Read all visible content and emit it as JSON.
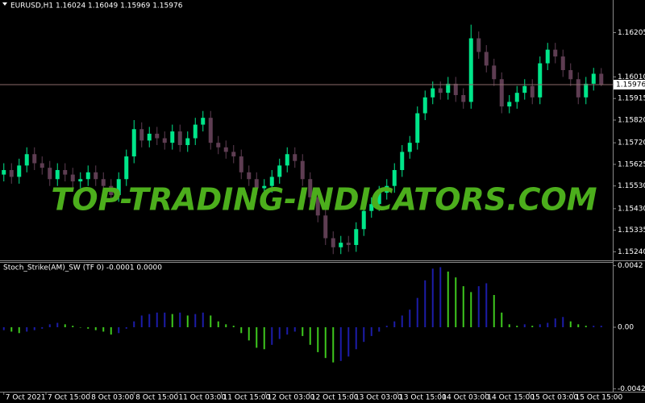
{
  "watermark": "TOP-TRADING-INDICATORS.COM",
  "chart_data": [
    {
      "type": "candlestick",
      "title": "EURUSD,H1  1.16024 1.16049 1.15969 1.15976",
      "open": [
        1.1558,
        1.156,
        1.1557,
        1.1562,
        1.1567,
        1.1563,
        1.1561,
        1.1556,
        1.156,
        1.1558,
        1.1555,
        1.1556,
        1.1559,
        1.1556,
        1.1553,
        1.1549,
        1.1556,
        1.1566,
        1.1578,
        1.1573,
        1.1576,
        1.1574,
        1.1572,
        1.1577,
        1.1571,
        1.1574,
        1.158,
        1.1583,
        1.1572,
        1.157,
        1.1568,
        1.1566,
        1.1559,
        1.1556,
        1.1552,
        1.1553,
        1.1557,
        1.1562,
        1.1567,
        1.1564,
        1.1556,
        1.1548,
        1.154,
        1.153,
        1.1526,
        1.1528,
        1.1527,
        1.1534,
        1.1542,
        1.1545,
        1.155,
        1.1553,
        1.156,
        1.1568,
        1.1572,
        1.1585,
        1.1592,
        1.1596,
        1.1594,
        1.1598,
        1.1593,
        1.159,
        1.1618,
        1.1612,
        1.1606,
        1.16,
        1.1588,
        1.159,
        1.1594,
        1.1597,
        1.1592,
        1.1607,
        1.1613,
        1.161,
        1.1604,
        1.16,
        1.1592,
        1.1598,
        1.16024
      ],
      "high": [
        1.1563,
        1.1563,
        1.1565,
        1.157,
        1.157,
        1.1566,
        1.1564,
        1.1563,
        1.1563,
        1.1561,
        1.1559,
        1.1562,
        1.1562,
        1.1559,
        1.1556,
        1.1559,
        1.1569,
        1.1582,
        1.1581,
        1.1579,
        1.1579,
        1.1577,
        1.158,
        1.158,
        1.1577,
        1.1583,
        1.1586,
        1.1586,
        1.1575,
        1.1573,
        1.1571,
        1.1569,
        1.1562,
        1.1559,
        1.1556,
        1.156,
        1.1565,
        1.157,
        1.157,
        1.1567,
        1.1559,
        1.1551,
        1.1543,
        1.1533,
        1.1531,
        1.1531,
        1.1537,
        1.1545,
        1.1548,
        1.1553,
        1.1556,
        1.1563,
        1.1571,
        1.1575,
        1.1588,
        1.1595,
        1.1599,
        1.1599,
        1.1601,
        1.1601,
        1.1596,
        1.1624,
        1.1621,
        1.1615,
        1.1609,
        1.1603,
        1.1593,
        1.1597,
        1.16,
        1.16,
        1.161,
        1.1616,
        1.1616,
        1.1613,
        1.1607,
        1.1603,
        1.1601,
        1.1605,
        1.16049
      ],
      "low": [
        1.1555,
        1.1554,
        1.1554,
        1.1559,
        1.156,
        1.1558,
        1.1553,
        1.1553,
        1.1555,
        1.1552,
        1.1552,
        1.1553,
        1.1553,
        1.155,
        1.1546,
        1.1546,
        1.1553,
        1.1563,
        1.157,
        1.157,
        1.1571,
        1.1569,
        1.1569,
        1.1568,
        1.1568,
        1.1571,
        1.1577,
        1.1569,
        1.1567,
        1.1565,
        1.1563,
        1.1556,
        1.1553,
        1.1549,
        1.1549,
        1.155,
        1.1554,
        1.1559,
        1.1561,
        1.1553,
        1.1545,
        1.1537,
        1.1527,
        1.1523,
        1.1523,
        1.1524,
        1.1524,
        1.1531,
        1.1539,
        1.1542,
        1.1547,
        1.155,
        1.1557,
        1.1565,
        1.1569,
        1.1582,
        1.1589,
        1.1591,
        1.1591,
        1.159,
        1.1587,
        1.1587,
        1.1609,
        1.1603,
        1.1597,
        1.1585,
        1.1585,
        1.1587,
        1.1591,
        1.1589,
        1.1589,
        1.1604,
        1.1607,
        1.1601,
        1.1597,
        1.1589,
        1.1589,
        1.1595,
        1.15969
      ],
      "close": [
        1.156,
        1.1557,
        1.1562,
        1.1567,
        1.1563,
        1.1561,
        1.1556,
        1.156,
        1.1558,
        1.1555,
        1.1556,
        1.1559,
        1.1556,
        1.1553,
        1.1549,
        1.1556,
        1.1566,
        1.1578,
        1.1573,
        1.1576,
        1.1574,
        1.1572,
        1.1577,
        1.1571,
        1.1574,
        1.158,
        1.1583,
        1.1572,
        1.157,
        1.1568,
        1.1566,
        1.1559,
        1.1556,
        1.1552,
        1.1553,
        1.1557,
        1.1562,
        1.1567,
        1.1564,
        1.1556,
        1.1548,
        1.154,
        1.153,
        1.1526,
        1.1528,
        1.1527,
        1.1534,
        1.1542,
        1.1545,
        1.155,
        1.1553,
        1.156,
        1.1568,
        1.1572,
        1.1585,
        1.1592,
        1.1596,
        1.1594,
        1.1598,
        1.1593,
        1.159,
        1.1618,
        1.1612,
        1.1606,
        1.16,
        1.1588,
        1.159,
        1.1594,
        1.1597,
        1.1592,
        1.1607,
        1.1613,
        1.161,
        1.1604,
        1.16,
        1.1592,
        1.1598,
        1.16024,
        1.15976
      ],
      "up_color": "#00e68a",
      "down_color": "#5e3d52",
      "last_price": 1.15976,
      "xlim": [
        -0.5,
        79.5
      ],
      "ylim": [
        1.15206,
        1.16299
      ],
      "yticks": [
        1.16205,
        {
          "value": 1.1601,
          "label": "1.16010"
        },
        1.15915,
        {
          "value": 1.1582,
          "label": "1.15820"
        },
        {
          "value": 1.1572,
          "label": "1.15720"
        },
        1.15625,
        {
          "value": 1.1553,
          "label": "1.15530"
        },
        {
          "value": 1.1543,
          "label": "1.15430"
        },
        1.15335,
        {
          "value": 1.1524,
          "label": "1.15240"
        }
      ]
    },
    {
      "type": "bar",
      "title": "Stoch_Strike(AM)_SW (TF 0) -0.0001 0.0000",
      "values": [
        -0.0002,
        -0.0003,
        -0.0004,
        -0.0003,
        -0.0002,
        -0.0001,
        0.0002,
        0.0003,
        0.0002,
        0.0001,
        0,
        -0.0001,
        -0.0002,
        -0.0003,
        -0.0005,
        -0.0004,
        -0.0001,
        0.0004,
        0.0008,
        0.0009,
        0.001,
        0.001,
        0.0009,
        0.001,
        0.0008,
        0.0009,
        0.001,
        0.0008,
        0.0004,
        0.0002,
        0.0001,
        -0.0004,
        -0.0009,
        -0.0014,
        -0.0015,
        -0.0012,
        -0.0008,
        -0.0005,
        -0.0003,
        -0.0006,
        -0.0012,
        -0.0017,
        -0.0021,
        -0.0024,
        -0.0023,
        -0.002,
        -0.0015,
        -0.001,
        -0.0006,
        -0.0003,
        0.0001,
        0.0004,
        0.0008,
        0.0012,
        0.002,
        0.0032,
        0.004,
        0.0041,
        0.0038,
        0.0034,
        0.0028,
        0.0024,
        0.0028,
        0.003,
        0.0022,
        0.001,
        0.0002,
        0.0001,
        0.0002,
        0.0001,
        0.0002,
        0.0003,
        0.0006,
        0.0007,
        0.0004,
        0.0002,
        0.0001,
        0.0001,
        0.0001
      ],
      "rise_color": "#1c1ca8",
      "fall_color": "#3ec81e",
      "xlim": [
        -0.5,
        79.5
      ],
      "ylim": [
        -0.0044,
        0.0044
      ],
      "yticks": [
        0.0042,
        {
          "value": 0,
          "label": "0.00"
        },
        -0.0042
      ],
      "xticks": [
        {
          "value": 0,
          "label": "7 Oct 2021"
        },
        {
          "value": 5.5,
          "label": "7 Oct 15:00"
        },
        {
          "value": 11.2,
          "label": "8 Oct 03:00"
        },
        {
          "value": 17,
          "label": "8 Oct 15:00"
        },
        {
          "value": 22.6,
          "label": "11 Oct 03:00"
        },
        {
          "value": 28.4,
          "label": "11 Oct 15:00"
        },
        {
          "value": 34.2,
          "label": "12 Oct 03:00"
        },
        {
          "value": 39.9,
          "label": "12 Oct 15:00"
        },
        {
          "value": 45.6,
          "label": "13 Oct 03:00"
        },
        {
          "value": 51.4,
          "label": "13 Oct 15:00"
        },
        {
          "value": 57,
          "label": "14 Oct 03:00"
        },
        {
          "value": 62.9,
          "label": "14 Oct 15:00"
        },
        {
          "value": 68.6,
          "label": "15 Oct 03:00"
        },
        {
          "value": 74.4,
          "label": "15 Oct 15:00"
        }
      ]
    }
  ]
}
